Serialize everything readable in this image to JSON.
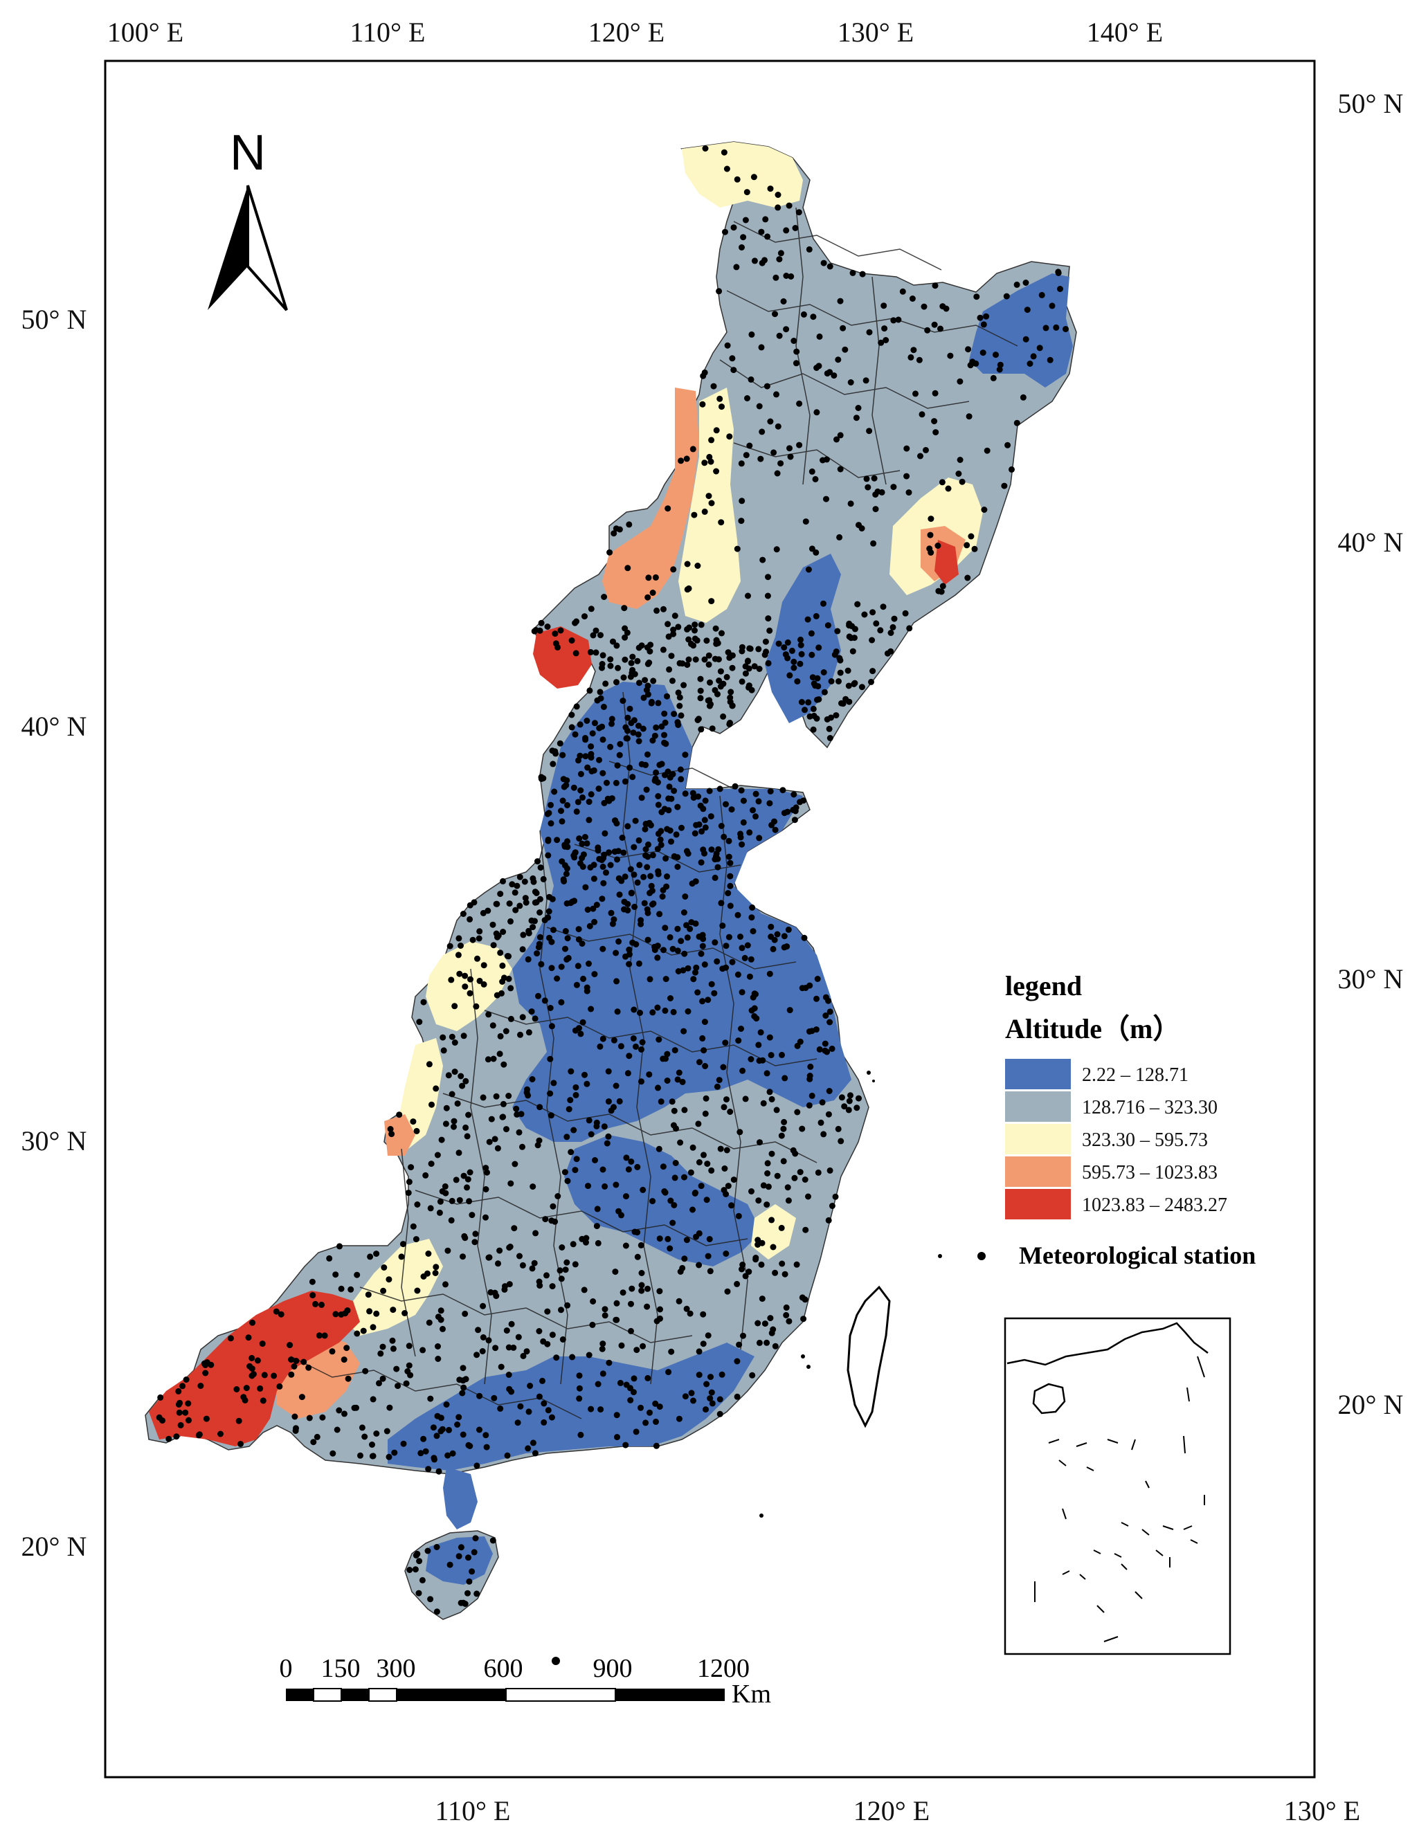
{
  "map": {
    "top_axis_labels": [
      "100° E",
      "110° E",
      "120° E",
      "130° E",
      "140° E"
    ],
    "bottom_axis_labels": [
      "110° E",
      "120° E",
      "130° E"
    ],
    "left_axis_labels": [
      "50° N",
      "40° N",
      "30° N",
      "20° N"
    ],
    "right_axis_labels": [
      "50° N",
      "40° N",
      "30° N",
      "20° N"
    ]
  },
  "north_arrow": {
    "label": "N"
  },
  "legend": {
    "heading": "legend",
    "title": "Altitude（m）",
    "classes": [
      {
        "label": "2.22 – 128.71",
        "color": "#4a72b8"
      },
      {
        "label": "128.716 – 323.30",
        "color": "#9fb0bd"
      },
      {
        "label": "323.30 – 595.73",
        "color": "#fcf7c4"
      },
      {
        "label": "595.73 – 1023.83",
        "color": "#f39b70"
      },
      {
        "label": "1023.83 – 2483.27",
        "color": "#d93a2b"
      }
    ],
    "station_label": "Meteorological station"
  },
  "scale_bar": {
    "ticks": [
      "0",
      "150",
      "300",
      "600",
      "900",
      "1200"
    ],
    "unit": "Km"
  }
}
